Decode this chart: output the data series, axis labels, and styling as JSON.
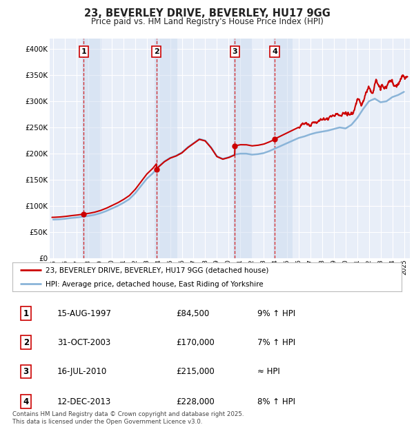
{
  "title_line1": "23, BEVERLEY DRIVE, BEVERLEY, HU17 9GG",
  "title_line2": "Price paid vs. HM Land Registry's House Price Index (HPI)",
  "background_color": "#ffffff",
  "plot_bg_color": "#e8eef8",
  "grid_color": "#ffffff",
  "ylim": [
    0,
    420000
  ],
  "yticks": [
    0,
    50000,
    100000,
    150000,
    200000,
    250000,
    300000,
    350000,
    400000
  ],
  "ytick_labels": [
    "£0",
    "£50K",
    "£100K",
    "£150K",
    "£200K",
    "£250K",
    "£300K",
    "£350K",
    "£400K"
  ],
  "hpi_line_color": "#8ab4d8",
  "price_line_color": "#cc0000",
  "vline_color": "#cc0000",
  "shade_color": "#c8d8ee",
  "legend_label_red": "23, BEVERLEY DRIVE, BEVERLEY, HU17 9GG (detached house)",
  "legend_label_blue": "HPI: Average price, detached house, East Riding of Yorkshire",
  "table_entries": [
    {
      "num": "1",
      "date": "15-AUG-1997",
      "price": "£84,500",
      "hpi": "9% ↑ HPI"
    },
    {
      "num": "2",
      "date": "31-OCT-2003",
      "price": "£170,000",
      "hpi": "7% ↑ HPI"
    },
    {
      "num": "3",
      "date": "16-JUL-2010",
      "price": "£215,000",
      "hpi": "≈ HPI"
    },
    {
      "num": "4",
      "date": "12-DEC-2013",
      "price": "£228,000",
      "hpi": "8% ↑ HPI"
    }
  ],
  "footnote": "Contains HM Land Registry data © Crown copyright and database right 2025.\nThis data is licensed under the Open Government Licence v3.0.",
  "xlim_start": 1994.7,
  "xlim_end": 2025.5,
  "xticks": [
    1995,
    1996,
    1997,
    1998,
    1999,
    2000,
    2001,
    2002,
    2003,
    2004,
    2005,
    2006,
    2007,
    2008,
    2009,
    2010,
    2011,
    2012,
    2013,
    2014,
    2015,
    2016,
    2017,
    2018,
    2019,
    2020,
    2021,
    2022,
    2023,
    2024,
    2025
  ],
  "s1_date": 1997.62,
  "s2_date": 2003.83,
  "s3_date": 2010.54,
  "s4_date": 2013.94,
  "s1_price": 84500,
  "s2_price": 170000,
  "s3_price": 215000,
  "s4_price": 228000
}
